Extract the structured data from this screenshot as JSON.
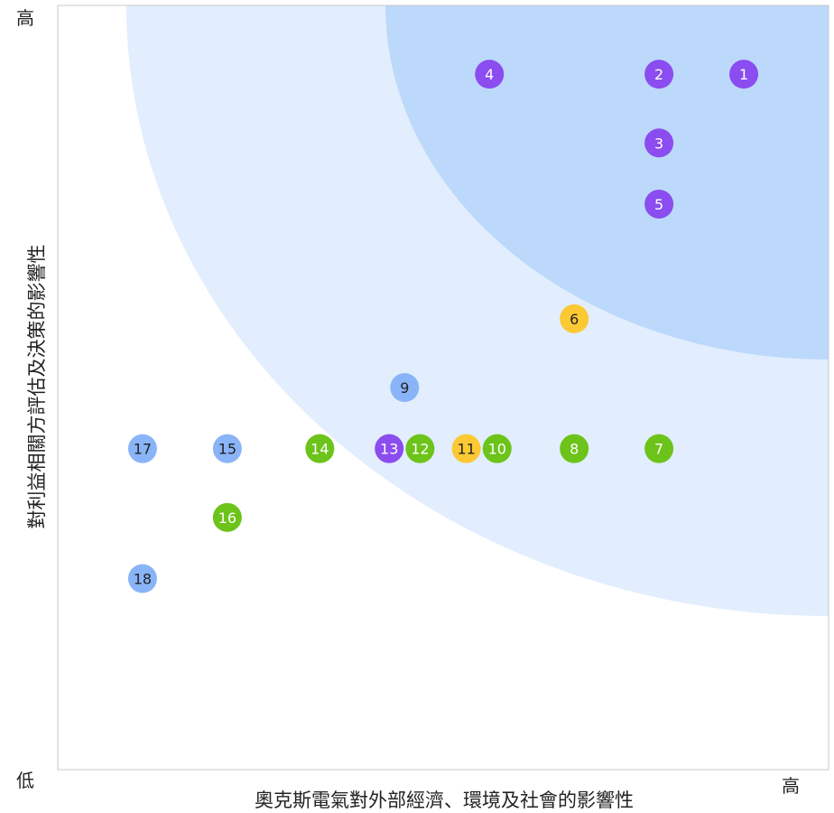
{
  "chart_data": {
    "type": "scatter",
    "title": "",
    "xlabel": "奧克斯電氣對外部經濟、環境及社會的影響性",
    "ylabel": "對利益相關方評估及決策的影響性",
    "x_low_label": "",
    "x_high_label": "高",
    "y_low_label": "低",
    "y_high_label": "高",
    "xlim": [
      0,
      10
    ],
    "ylim": [
      0,
      10
    ],
    "colors": {
      "purple": "#8b4cf0",
      "blue": "#8ab4f8",
      "green": "#6cc31a",
      "yellow": "#fcc934",
      "band_outer": "#e2eefd",
      "band_inner": "#bcd9fb"
    },
    "points": [
      {
        "label": "1",
        "x": 8.9,
        "y": 9.1,
        "color": "purple"
      },
      {
        "label": "2",
        "x": 7.8,
        "y": 9.1,
        "color": "purple"
      },
      {
        "label": "3",
        "x": 7.8,
        "y": 8.2,
        "color": "purple"
      },
      {
        "label": "4",
        "x": 5.6,
        "y": 9.1,
        "color": "purple"
      },
      {
        "label": "5",
        "x": 7.8,
        "y": 7.4,
        "color": "purple"
      },
      {
        "label": "6",
        "x": 6.7,
        "y": 5.9,
        "color": "yellow"
      },
      {
        "label": "7",
        "x": 7.8,
        "y": 4.2,
        "color": "green"
      },
      {
        "label": "8",
        "x": 6.7,
        "y": 4.2,
        "color": "green"
      },
      {
        "label": "9",
        "x": 4.5,
        "y": 5.0,
        "color": "blue"
      },
      {
        "label": "10",
        "x": 5.7,
        "y": 4.2,
        "color": "green"
      },
      {
        "label": "11",
        "x": 5.3,
        "y": 4.2,
        "color": "yellow"
      },
      {
        "label": "12",
        "x": 4.7,
        "y": 4.2,
        "color": "green"
      },
      {
        "label": "13",
        "x": 4.3,
        "y": 4.2,
        "color": "purple"
      },
      {
        "label": "14",
        "x": 3.4,
        "y": 4.2,
        "color": "green"
      },
      {
        "label": "15",
        "x": 2.2,
        "y": 4.2,
        "color": "blue"
      },
      {
        "label": "16",
        "x": 2.2,
        "y": 3.3,
        "color": "green"
      },
      {
        "label": "17",
        "x": 1.1,
        "y": 4.2,
        "color": "blue"
      },
      {
        "label": "18",
        "x": 1.1,
        "y": 2.5,
        "color": "blue"
      }
    ]
  }
}
